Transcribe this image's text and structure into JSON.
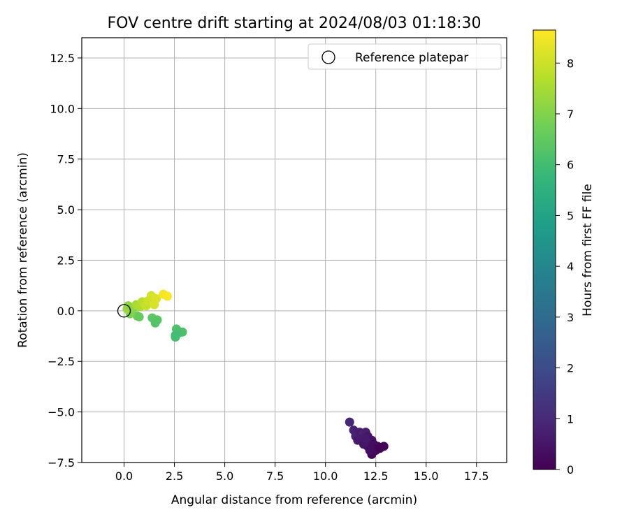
{
  "chart_data": {
    "type": "scatter",
    "title": "FOV centre drift starting at 2024/08/03 01:18:30",
    "xlabel": "Angular distance from reference (arcmin)",
    "ylabel": "Rotation from reference (arcmin)",
    "xlim": [
      -2.1,
      19.0
    ],
    "ylim": [
      -7.5,
      13.5
    ],
    "xticks": [
      "0.0",
      "2.5",
      "5.0",
      "7.5",
      "10.0",
      "12.5",
      "15.0",
      "17.5"
    ],
    "yticks": [
      "−7.5",
      "−5.0",
      "−2.5",
      "0.0",
      "2.5",
      "5.0",
      "7.5",
      "10.0",
      "12.5"
    ],
    "grid": true,
    "legend": {
      "placement": "top-right",
      "entries": [
        "Reference platepar"
      ]
    },
    "reference_point": {
      "x": 0.0,
      "y": 0.0,
      "color": "#000000"
    },
    "colorbar": {
      "label": "Hours from first FF file",
      "min": 0,
      "max": 8.65,
      "ticks": [
        "0",
        "1",
        "2",
        "3",
        "4",
        "5",
        "6",
        "7",
        "8"
      ],
      "colors": [
        "#440154",
        "#482878",
        "#3e4989",
        "#31688e",
        "#26828e",
        "#1f9e89",
        "#35b779",
        "#6ece58",
        "#b5de2b",
        "#fde725"
      ]
    },
    "points": [
      {
        "x": 11.2,
        "y": -5.5,
        "c": 0.9
      },
      {
        "x": 11.4,
        "y": -5.9,
        "c": 0.8
      },
      {
        "x": 11.5,
        "y": -6.2,
        "c": 0.85
      },
      {
        "x": 11.7,
        "y": -6.0,
        "c": 0.7
      },
      {
        "x": 11.9,
        "y": -6.1,
        "c": 0.95
      },
      {
        "x": 12.0,
        "y": -6.0,
        "c": 0.75
      },
      {
        "x": 11.6,
        "y": -6.4,
        "c": 0.6
      },
      {
        "x": 11.8,
        "y": -6.3,
        "c": 0.65
      },
      {
        "x": 12.0,
        "y": -6.5,
        "c": 0.55
      },
      {
        "x": 12.1,
        "y": -6.2,
        "c": 0.5
      },
      {
        "x": 12.3,
        "y": -6.4,
        "c": 0.45
      },
      {
        "x": 12.1,
        "y": -6.7,
        "c": 0.4
      },
      {
        "x": 12.2,
        "y": -6.8,
        "c": 0.35
      },
      {
        "x": 12.4,
        "y": -6.6,
        "c": 0.3
      },
      {
        "x": 12.5,
        "y": -6.9,
        "c": 0.25
      },
      {
        "x": 12.6,
        "y": -6.7,
        "c": 0.2
      },
      {
        "x": 12.3,
        "y": -7.1,
        "c": 0.15
      },
      {
        "x": 12.7,
        "y": -6.8,
        "c": 0.1
      },
      {
        "x": 12.9,
        "y": -6.7,
        "c": 0.05
      },
      {
        "x": 12.2,
        "y": -6.9,
        "c": 0.3
      },
      {
        "x": 11.9,
        "y": -6.6,
        "c": 0.5
      },
      {
        "x": 12.0,
        "y": -6.3,
        "c": 0.6
      },
      {
        "x": 2.6,
        "y": -0.9,
        "c": 6.2
      },
      {
        "x": 2.9,
        "y": -1.05,
        "c": 6.15
      },
      {
        "x": 2.7,
        "y": -1.1,
        "c": 6.1
      },
      {
        "x": 2.55,
        "y": -1.3,
        "c": 6.05
      },
      {
        "x": 2.55,
        "y": -1.2,
        "c": 6.0
      },
      {
        "x": 1.4,
        "y": -0.35,
        "c": 6.4
      },
      {
        "x": 1.65,
        "y": -0.45,
        "c": 6.35
      },
      {
        "x": 1.55,
        "y": -0.6,
        "c": 6.3
      },
      {
        "x": 0.65,
        "y": -0.25,
        "c": 6.7
      },
      {
        "x": 0.75,
        "y": -0.3,
        "c": 6.6
      },
      {
        "x": 0.3,
        "y": -0.15,
        "c": 7.0
      },
      {
        "x": 0.15,
        "y": 0.1,
        "c": 7.3
      },
      {
        "x": 0.2,
        "y": 0.25,
        "c": 7.2
      },
      {
        "x": 0.45,
        "y": 0.15,
        "c": 7.1
      },
      {
        "x": 0.6,
        "y": 0.3,
        "c": 7.5
      },
      {
        "x": 0.8,
        "y": 0.2,
        "c": 7.6
      },
      {
        "x": 0.9,
        "y": 0.45,
        "c": 7.7
      },
      {
        "x": 1.0,
        "y": 0.35,
        "c": 7.8
      },
      {
        "x": 1.1,
        "y": 0.25,
        "c": 7.9
      },
      {
        "x": 1.2,
        "y": 0.5,
        "c": 8.0
      },
      {
        "x": 1.35,
        "y": 0.75,
        "c": 8.1
      },
      {
        "x": 1.45,
        "y": 0.4,
        "c": 8.0
      },
      {
        "x": 1.6,
        "y": 0.6,
        "c": 8.2
      },
      {
        "x": 1.5,
        "y": 0.3,
        "c": 8.15
      },
      {
        "x": 1.95,
        "y": 0.82,
        "c": 8.5
      },
      {
        "x": 2.15,
        "y": 0.72,
        "c": 8.6
      }
    ]
  }
}
